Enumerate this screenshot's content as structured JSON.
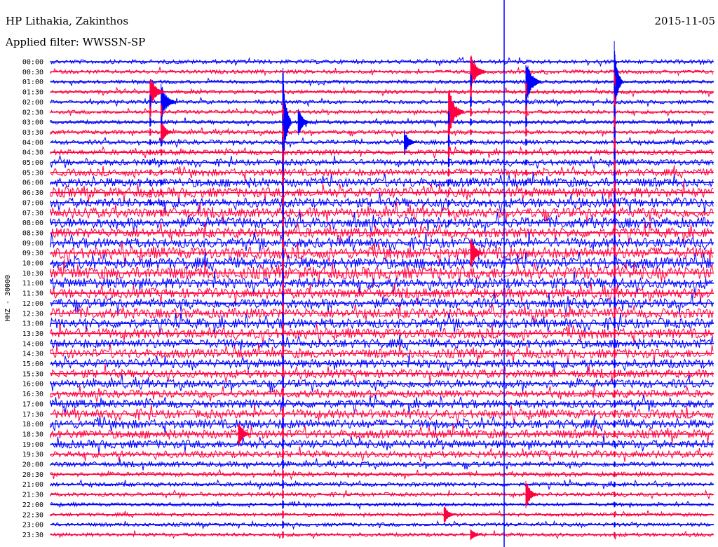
{
  "header": {
    "station": "HP Lithakia, Zakinthos",
    "filter": "Applied filter: WWSSN-SP",
    "date": "2015-11-05"
  },
  "chart_data": {
    "type": "line",
    "title": "HP Lithakia, Zakinthos",
    "subtitle": "Applied filter: WWSSN-SP",
    "date": "2015-11-05",
    "ylabel": "HHZ - 30000",
    "xlabel": "",
    "line_minutes": 30,
    "row_labels": [
      "00:00",
      "00:30",
      "01:00",
      "01:30",
      "02:00",
      "02:30",
      "03:00",
      "03:30",
      "04:00",
      "04:30",
      "05:00",
      "05:30",
      "06:00",
      "06:30",
      "07:00",
      "07:30",
      "08:00",
      "08:30",
      "09:00",
      "09:30",
      "10:00",
      "10:30",
      "11:00",
      "11:30",
      "12:00",
      "12:30",
      "13:00",
      "13:30",
      "14:00",
      "14:30",
      "15:00",
      "15:30",
      "16:00",
      "16:30",
      "17:00",
      "17:30",
      "18:00",
      "18:30",
      "19:00",
      "19:30",
      "20:00",
      "20:30",
      "21:00",
      "21:30",
      "22:00",
      "22:30",
      "23:00",
      "23:30"
    ],
    "colors": [
      "#0000ff",
      "#ff0040"
    ],
    "noise_level": [
      0.08,
      0.06,
      0.05,
      0.06,
      0.05,
      0.06,
      0.07,
      0.08,
      0.1,
      0.15,
      0.2,
      0.28,
      0.4,
      0.45,
      0.42,
      0.45,
      0.5,
      0.45,
      0.45,
      0.55,
      0.55,
      0.6,
      0.5,
      0.45,
      0.45,
      0.45,
      0.45,
      0.45,
      0.4,
      0.4,
      0.38,
      0.35,
      0.35,
      0.3,
      0.35,
      0.38,
      0.4,
      0.38,
      0.35,
      0.25,
      0.15,
      0.1,
      0.08,
      0.06,
      0.05,
      0.05,
      0.05,
      0.05
    ],
    "events": [
      {
        "row": 6,
        "minute": 10.5,
        "amplitude": 90,
        "type": "large"
      },
      {
        "row": 5,
        "minute": 18.0,
        "amplitude": 40,
        "type": "medium"
      },
      {
        "row": 1,
        "minute": 19.0,
        "amplitude": 30,
        "type": "medium"
      },
      {
        "row": 2,
        "minute": 25.5,
        "amplitude": 60,
        "type": "large"
      },
      {
        "row": 4,
        "minute": 5.0,
        "amplitude": 28,
        "type": "medium"
      },
      {
        "row": 2,
        "minute": 21.5,
        "amplitude": 35,
        "type": "medium"
      },
      {
        "row": 3,
        "minute": 4.5,
        "amplitude": 25,
        "type": "medium"
      },
      {
        "row": 6,
        "minute": 11.2,
        "amplitude": 22,
        "type": "small"
      },
      {
        "row": 7,
        "minute": 5.0,
        "amplitude": 18,
        "type": "small"
      },
      {
        "row": 8,
        "minute": 16.0,
        "amplitude": 18,
        "type": "small"
      },
      {
        "row": 43,
        "minute": 21.5,
        "amplitude": 22,
        "type": "small"
      },
      {
        "row": 45,
        "minute": 17.8,
        "amplitude": 14,
        "type": "small"
      },
      {
        "row": 47,
        "minute": 19.0,
        "amplitude": 10,
        "type": "small"
      },
      {
        "row": 37,
        "minute": 8.5,
        "amplitude": 20,
        "type": "small"
      },
      {
        "row": 19,
        "minute": 19.0,
        "amplitude": 25,
        "type": "small"
      }
    ]
  }
}
